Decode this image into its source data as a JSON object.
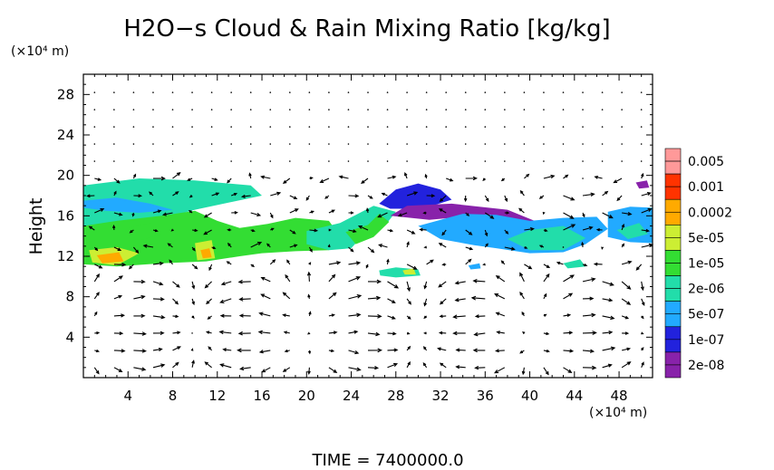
{
  "chart_data": {
    "type": "heatmap",
    "title": "H2O−s Cloud & Rain Mixing Ratio [kg/kg]",
    "ylabel": "Height",
    "y_unit_label": "(×10⁴ m)",
    "x_unit_label": "(×10⁴ m)",
    "footer": "TIME = 7400000.0",
    "xlim": [
      0,
      51
    ],
    "ylim": [
      0,
      30
    ],
    "x_ticks": [
      "4",
      "8",
      "12",
      "16",
      "20",
      "24",
      "28",
      "32",
      "36",
      "40",
      "44",
      "48"
    ],
    "y_ticks": [
      "4",
      "8",
      "12",
      "16",
      "20",
      "24",
      "28"
    ],
    "colorbar": {
      "labels": [
        "0.005",
        "0.001",
        "0.0002",
        "5e-05",
        "1e-05",
        "2e-06",
        "5e-07",
        "1e-07",
        "2e-08"
      ],
      "colors": [
        "#ff9999",
        "#ff3300",
        "#ffaa00",
        "#ccee33",
        "#33dd33",
        "#22ddaa",
        "#22aaff",
        "#2222dd",
        "#8822aa"
      ]
    },
    "regions": [
      {
        "level": 5,
        "points": [
          [
            0,
            19
          ],
          [
            5,
            19.7
          ],
          [
            10,
            19.5
          ],
          [
            15,
            19
          ],
          [
            16,
            18
          ],
          [
            13,
            17.3
          ],
          [
            10,
            16.6
          ],
          [
            8,
            16
          ],
          [
            5,
            15.6
          ],
          [
            2,
            15.2
          ],
          [
            0,
            15
          ]
        ]
      },
      {
        "level": 4,
        "points": [
          [
            0,
            15
          ],
          [
            3,
            15.5
          ],
          [
            7,
            16
          ],
          [
            10,
            16.5
          ],
          [
            12,
            15.5
          ],
          [
            14,
            14.8
          ],
          [
            16.5,
            15.2
          ],
          [
            19,
            15.8
          ],
          [
            22,
            15.5
          ],
          [
            23,
            14
          ],
          [
            22,
            12.6
          ],
          [
            19,
            12.5
          ],
          [
            16,
            12.3
          ],
          [
            14,
            12
          ],
          [
            11,
            11.5
          ],
          [
            7,
            11.3
          ],
          [
            3,
            11
          ],
          [
            0,
            11.2
          ]
        ]
      },
      {
        "level": 6,
        "points": [
          [
            0,
            17.5
          ],
          [
            3,
            17.8
          ],
          [
            6,
            17.2
          ],
          [
            8,
            16.6
          ],
          [
            5,
            16.3
          ],
          [
            2,
            16.5
          ],
          [
            0,
            16.8
          ]
        ]
      },
      {
        "level": 3,
        "points": [
          [
            0.5,
            12.6
          ],
          [
            3,
            12.9
          ],
          [
            5,
            12.3
          ],
          [
            3,
            11.1
          ],
          [
            0.8,
            11.4
          ]
        ]
      },
      {
        "level": 2,
        "points": [
          [
            1.2,
            12.1
          ],
          [
            3.2,
            12.4
          ],
          [
            3.6,
            11.5
          ],
          [
            1.7,
            11.3
          ]
        ]
      },
      {
        "level": 3,
        "points": [
          [
            10,
            13.3
          ],
          [
            11.5,
            13.6
          ],
          [
            11.8,
            11.8
          ],
          [
            10.2,
            11.6
          ]
        ]
      },
      {
        "level": 2,
        "points": [
          [
            10.5,
            12.6
          ],
          [
            11.3,
            12.8
          ],
          [
            11.5,
            11.9
          ],
          [
            10.7,
            11.8
          ]
        ]
      },
      {
        "level": 4,
        "points": [
          [
            4,
            14.8
          ],
          [
            6,
            15.3
          ],
          [
            7,
            14.2
          ],
          [
            5.2,
            13.6
          ]
        ]
      },
      {
        "level": 5,
        "points": [
          [
            20,
            14.5
          ],
          [
            23,
            15.3
          ],
          [
            26,
            17
          ],
          [
            28,
            16.4
          ],
          [
            27,
            15
          ],
          [
            25,
            14
          ],
          [
            24,
            12.8
          ],
          [
            22,
            12.6
          ],
          [
            20,
            13.2
          ]
        ]
      },
      {
        "level": 4,
        "points": [
          [
            23.5,
            14.4
          ],
          [
            25.5,
            15.1
          ],
          [
            26.5,
            16.2
          ],
          [
            27.4,
            15.4
          ],
          [
            26,
            13.9
          ],
          [
            24.4,
            13.2
          ]
        ]
      },
      {
        "level": 7,
        "points": [
          [
            26.5,
            17.2
          ],
          [
            28,
            18.6
          ],
          [
            30,
            19.2
          ],
          [
            32,
            18.6
          ],
          [
            33,
            17.6
          ],
          [
            31,
            16.9
          ],
          [
            29,
            16.7
          ],
          [
            27.5,
            16.7
          ]
        ]
      },
      {
        "level": 8,
        "points": [
          [
            27.5,
            16
          ],
          [
            31,
            15.6
          ],
          [
            34,
            15.9
          ],
          [
            37,
            15.2
          ],
          [
            40,
            14.6
          ],
          [
            42,
            14.8
          ],
          [
            38,
            16.6
          ],
          [
            33,
            17.2
          ],
          [
            29,
            17
          ]
        ]
      },
      {
        "level": 6,
        "points": [
          [
            30,
            15
          ],
          [
            34,
            16.2
          ],
          [
            37,
            16.1
          ],
          [
            40,
            15.5
          ],
          [
            43,
            15.8
          ],
          [
            46,
            15.9
          ],
          [
            47,
            14.7
          ],
          [
            45,
            13.2
          ],
          [
            43,
            12.4
          ],
          [
            40,
            12.3
          ],
          [
            37,
            12.8
          ],
          [
            35,
            13.1
          ],
          [
            32,
            13.7
          ]
        ]
      },
      {
        "level": 5,
        "points": [
          [
            38,
            13.7
          ],
          [
            40,
            14.6
          ],
          [
            43,
            15
          ],
          [
            45,
            13.8
          ],
          [
            43,
            12.6
          ],
          [
            40,
            12.6
          ]
        ]
      },
      {
        "level": 6,
        "points": [
          [
            47,
            16.4
          ],
          [
            49,
            16.9
          ],
          [
            51,
            16.8
          ],
          [
            51,
            13.3
          ],
          [
            49,
            13.4
          ],
          [
            47,
            13.9
          ]
        ]
      },
      {
        "level": 5,
        "points": [
          [
            47.8,
            14.6
          ],
          [
            49.8,
            15.3
          ],
          [
            50.6,
            14.2
          ],
          [
            48.8,
            13.7
          ]
        ]
      },
      {
        "level": 8,
        "points": [
          [
            49.5,
            19.3
          ],
          [
            50.5,
            19.5
          ],
          [
            50.7,
            18.8
          ],
          [
            49.8,
            18.7
          ]
        ]
      },
      {
        "level": 5,
        "points": [
          [
            26.5,
            10.6
          ],
          [
            28,
            10.9
          ],
          [
            30,
            10.7
          ],
          [
            30.2,
            10.1
          ],
          [
            28,
            9.9
          ],
          [
            26.6,
            10.1
          ]
        ]
      },
      {
        "level": 3,
        "points": [
          [
            28.6,
            10.6
          ],
          [
            29.6,
            10.8
          ],
          [
            29.8,
            10.2
          ],
          [
            28.8,
            10.2
          ]
        ]
      },
      {
        "level": 5,
        "points": [
          [
            43,
            11.3
          ],
          [
            44.5,
            11.7
          ],
          [
            45,
            11
          ],
          [
            43.4,
            10.8
          ]
        ]
      },
      {
        "level": 6,
        "points": [
          [
            34.5,
            11.1
          ],
          [
            35.5,
            11.3
          ],
          [
            35.6,
            10.8
          ],
          [
            34.7,
            10.7
          ]
        ]
      }
    ]
  }
}
